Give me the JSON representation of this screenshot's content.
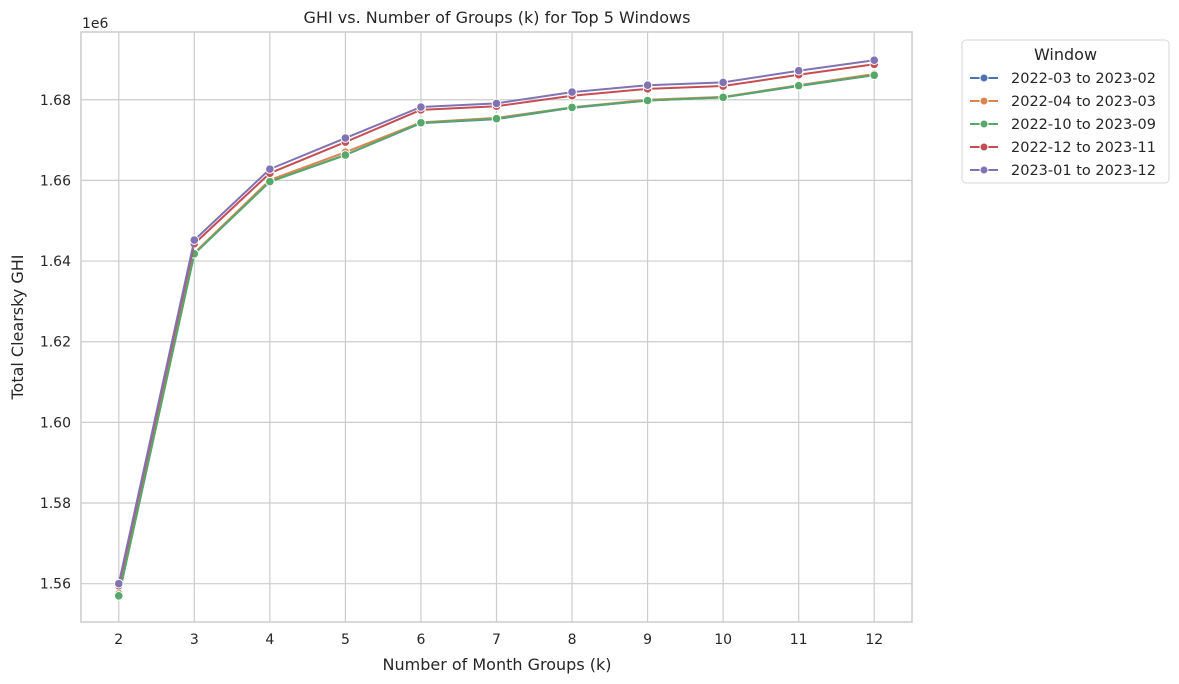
{
  "chart_data": {
    "type": "line",
    "title": "GHI vs. Number of Groups (k) for Top 5 Windows",
    "xlabel": "Number of Month Groups (k)",
    "ylabel": "Total Clearsky GHI",
    "y_offset_label": "1e6",
    "x": [
      2,
      3,
      4,
      5,
      6,
      7,
      8,
      9,
      10,
      11,
      12
    ],
    "x_ticks": [
      "2",
      "3",
      "4",
      "5",
      "6",
      "7",
      "8",
      "9",
      "10",
      "11",
      "12"
    ],
    "xlim": [
      1.5,
      12.5
    ],
    "ylim": [
      1.5505,
      1.6968
    ],
    "y_ticks": [
      1.56,
      1.58,
      1.6,
      1.62,
      1.64,
      1.66,
      1.68
    ],
    "y_tick_labels": [
      "1.56",
      "1.58",
      "1.60",
      "1.62",
      "1.64",
      "1.66",
      "1.68"
    ],
    "grid": true,
    "legend": {
      "title": "Window",
      "placement": "outside-top-right"
    },
    "series": [
      {
        "name": "2022-03 to 2023-02",
        "color": "#4c72b0",
        "values": [
          1.557,
          1.6418,
          1.6597,
          1.6663,
          1.6742,
          1.6752,
          1.678,
          1.6798,
          1.6806,
          1.6834,
          1.6861
        ]
      },
      {
        "name": "2022-04 to 2023-03",
        "color": "#dd8452",
        "values": [
          1.5575,
          1.642,
          1.6601,
          1.667,
          1.6744,
          1.6755,
          1.6781,
          1.68,
          1.6807,
          1.6836,
          1.6864
        ]
      },
      {
        "name": "2022-10 to 2023-09",
        "color": "#55a868",
        "values": [
          1.557,
          1.6418,
          1.6597,
          1.6663,
          1.6743,
          1.6753,
          1.6781,
          1.6798,
          1.6806,
          1.6835,
          1.6861
        ]
      },
      {
        "name": "2022-12 to 2023-11",
        "color": "#c44e52",
        "values": [
          1.5595,
          1.6443,
          1.6618,
          1.6695,
          1.6775,
          1.6784,
          1.681,
          1.6827,
          1.6834,
          1.6862,
          1.6888
        ]
      },
      {
        "name": "2023-01 to 2023-12",
        "color": "#8172b3",
        "values": [
          1.56,
          1.6452,
          1.6628,
          1.6705,
          1.6782,
          1.6791,
          1.6819,
          1.6836,
          1.6843,
          1.6872,
          1.6898
        ]
      }
    ]
  }
}
